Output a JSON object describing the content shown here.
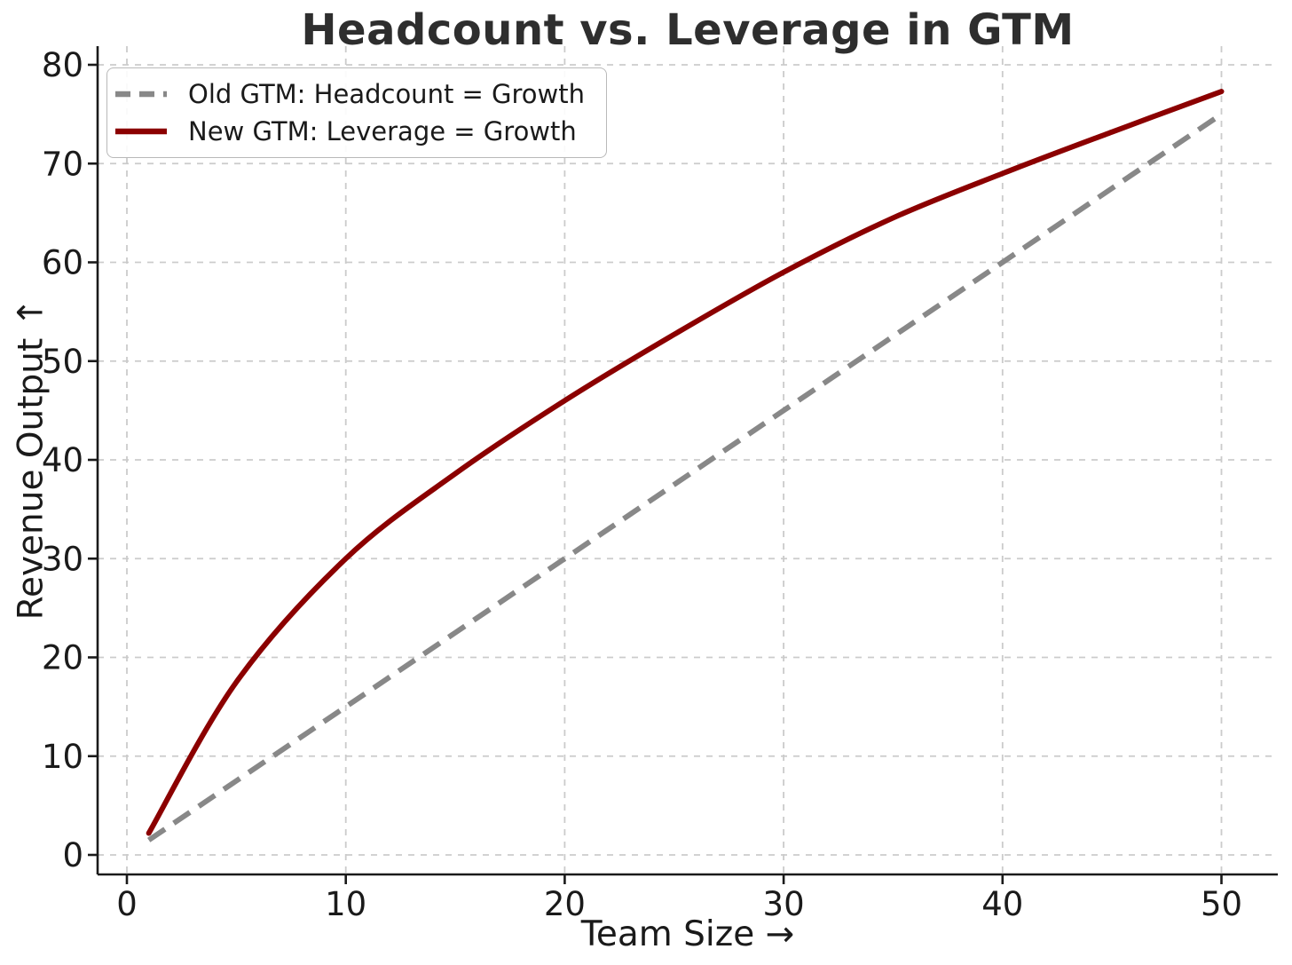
{
  "chart_data": {
    "type": "line",
    "title": "Headcount vs. Leverage in GTM",
    "xlabel": "Team Size →",
    "ylabel": "Revenue Output ↑",
    "x_ticks": [
      0,
      10,
      20,
      30,
      40,
      50
    ],
    "y_ticks": [
      0,
      10,
      20,
      30,
      40,
      50,
      60,
      70,
      80
    ],
    "xlim": [
      -1.45,
      52.45
    ],
    "ylim": [
      -2.3,
      81.9
    ],
    "grid": true,
    "legend_position": "upper-left",
    "x": [
      1,
      5,
      10,
      15,
      20,
      25,
      30,
      35,
      40,
      45,
      50
    ],
    "series": [
      {
        "name": "Old GTM: Headcount = Growth",
        "line_style": "dashed",
        "color": "#888888",
        "values": [
          1.5,
          7.5,
          15,
          22.5,
          30,
          37.5,
          45,
          52.5,
          60,
          67.5,
          75
        ]
      },
      {
        "name": "New GTM: Leverage = Growth",
        "line_style": "solid",
        "color": "#8b0000",
        "values": [
          2.2,
          17.5,
          30,
          38.6,
          46,
          52.7,
          59,
          64.5,
          69,
          73.2,
          77.3
        ]
      }
    ]
  },
  "style_colors": {
    "background": "#ffffff",
    "grid": "#cbcbcb",
    "spine": "#1a1a1a",
    "tick_text": "#1a1a1a",
    "title_text": "#2e2e2e",
    "legend_border": "#b9b9b9"
  }
}
